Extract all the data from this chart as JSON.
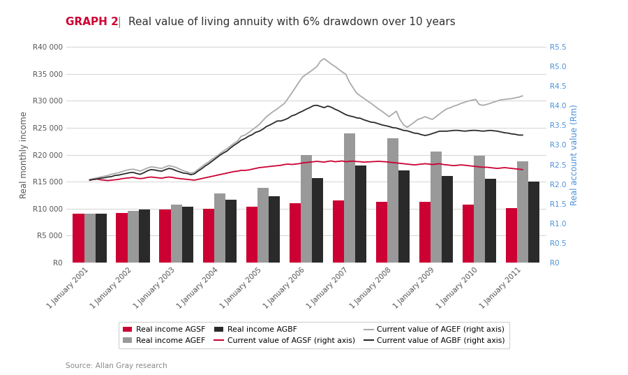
{
  "title_bold": "GRAPH 2",
  "title_sep": " | ",
  "title_rest": "Real value of living annuity with 6% drawdown over 10 years",
  "ylabel_left": "Real monthly income",
  "ylabel_right": "Real account value (Rm)",
  "xlabel_ticks": [
    "1 January 2001",
    "1 January 2002",
    "1 January 2003",
    "1 January 2004",
    "1 January 2005",
    "1 January 2006",
    "1 January 2007",
    "1 January 2008",
    "1 January 2009",
    "1 January 2010",
    "1 January 2011"
  ],
  "bar_x": [
    0,
    1,
    2,
    3,
    4,
    5,
    6,
    7,
    8,
    9,
    10
  ],
  "bar_agsf": [
    9000,
    9200,
    9800,
    10000,
    10300,
    11000,
    11500,
    11200,
    11300,
    10800,
    10100
  ],
  "bar_agef": [
    9100,
    9600,
    10700,
    12800,
    13900,
    20000,
    24000,
    23000,
    20600,
    19800,
    18800
  ],
  "bar_agbf": [
    9100,
    9800,
    10400,
    11600,
    12300,
    15700,
    18000,
    17100,
    16100,
    15500,
    15000
  ],
  "color_agsf_bar": "#cc0033",
  "color_agef_bar": "#999999",
  "color_agbf_bar": "#2a2a2a",
  "ylim_left": [
    0,
    40000
  ],
  "ylim_right": [
    0,
    5.5
  ],
  "left_ticks": [
    0,
    5000,
    10000,
    15000,
    20000,
    25000,
    30000,
    35000,
    40000
  ],
  "left_labels": [
    "R0",
    "R5 000",
    "R10 000",
    "R15 000",
    "R20 000",
    "R25 000",
    "R30 000",
    "R35 000",
    "R40 000"
  ],
  "right_ticks": [
    0,
    0.5,
    1.0,
    1.5,
    2.0,
    2.5,
    3.0,
    3.5,
    4.0,
    4.5,
    5.0,
    5.5
  ],
  "right_labels": [
    "R0",
    "R0.5",
    "R1.0",
    "R1.5",
    "R2.0",
    "R2.5",
    "R3.0",
    "R3.5",
    "R4.0",
    "R4.5",
    "R5.0",
    "R5.5"
  ],
  "source": "Source: Allan Gray research",
  "bg_color": "#f5f5f0",
  "line_agsf_y": [
    2.1,
    2.12,
    2.13,
    2.11,
    2.1,
    2.09,
    2.1,
    2.11,
    2.12,
    2.14,
    2.15,
    2.16,
    2.17,
    2.15,
    2.14,
    2.15,
    2.17,
    2.18,
    2.17,
    2.16,
    2.15,
    2.17,
    2.18,
    2.17,
    2.15,
    2.14,
    2.13,
    2.12,
    2.11,
    2.1,
    2.12,
    2.14,
    2.16,
    2.18,
    2.2,
    2.22,
    2.24,
    2.26,
    2.28,
    2.3,
    2.32,
    2.33,
    2.35,
    2.35,
    2.36,
    2.38,
    2.4,
    2.42,
    2.43,
    2.44,
    2.45,
    2.46,
    2.47,
    2.48,
    2.5,
    2.51,
    2.5,
    2.51,
    2.52,
    2.54,
    2.55,
    2.56,
    2.57,
    2.58,
    2.57,
    2.56,
    2.58,
    2.59,
    2.57,
    2.58,
    2.59,
    2.57,
    2.58,
    2.585,
    2.575,
    2.57,
    2.56,
    2.565,
    2.57,
    2.575,
    2.58,
    2.575,
    2.57,
    2.56,
    2.55,
    2.54,
    2.53,
    2.52,
    2.51,
    2.5,
    2.49,
    2.5,
    2.51,
    2.52,
    2.51,
    2.5,
    2.51,
    2.52,
    2.5,
    2.49,
    2.48,
    2.47,
    2.48,
    2.49,
    2.48,
    2.47,
    2.46,
    2.45,
    2.44,
    2.43,
    2.43,
    2.42,
    2.41,
    2.4,
    2.41,
    2.42,
    2.41,
    2.4,
    2.39,
    2.38,
    2.37
  ],
  "line_agef_y": [
    2.12,
    2.14,
    2.16,
    2.18,
    2.2,
    2.22,
    2.25,
    2.27,
    2.29,
    2.32,
    2.35,
    2.37,
    2.38,
    2.36,
    2.33,
    2.37,
    2.41,
    2.44,
    2.43,
    2.41,
    2.4,
    2.44,
    2.47,
    2.45,
    2.42,
    2.38,
    2.34,
    2.31,
    2.28,
    2.3,
    2.37,
    2.44,
    2.51,
    2.57,
    2.64,
    2.7,
    2.77,
    2.84,
    2.9,
    2.97,
    3.04,
    3.1,
    3.22,
    3.25,
    3.31,
    3.38,
    3.45,
    3.52,
    3.62,
    3.72,
    3.79,
    3.86,
    3.92,
    3.99,
    4.06,
    4.19,
    4.32,
    4.46,
    4.6,
    4.73,
    4.8,
    4.86,
    4.93,
    5.0,
    5.14,
    5.2,
    5.13,
    5.06,
    5.0,
    4.93,
    4.86,
    4.8,
    4.6,
    4.46,
    4.32,
    4.25,
    4.19,
    4.12,
    4.06,
    3.99,
    3.92,
    3.86,
    3.79,
    3.72,
    3.79,
    3.86,
    3.65,
    3.51,
    3.45,
    3.51,
    3.58,
    3.65,
    3.68,
    3.72,
    3.68,
    3.65,
    3.72,
    3.79,
    3.86,
    3.92,
    3.95,
    3.99,
    4.02,
    4.06,
    4.09,
    4.12,
    4.14,
    4.16,
    4.03,
    4.01,
    4.03,
    4.06,
    4.09,
    4.12,
    4.15,
    4.16,
    4.17,
    4.18,
    4.2,
    4.22,
    4.25
  ],
  "line_agbf_y": [
    2.1,
    2.12,
    2.13,
    2.15,
    2.16,
    2.18,
    2.19,
    2.22,
    2.23,
    2.25,
    2.27,
    2.29,
    2.3,
    2.27,
    2.25,
    2.29,
    2.34,
    2.37,
    2.36,
    2.34,
    2.33,
    2.37,
    2.4,
    2.38,
    2.34,
    2.31,
    2.28,
    2.27,
    2.24,
    2.26,
    2.33,
    2.39,
    2.46,
    2.52,
    2.59,
    2.66,
    2.73,
    2.79,
    2.84,
    2.92,
    2.99,
    3.05,
    3.12,
    3.16,
    3.22,
    3.26,
    3.32,
    3.35,
    3.4,
    3.47,
    3.51,
    3.56,
    3.61,
    3.61,
    3.64,
    3.68,
    3.74,
    3.77,
    3.82,
    3.86,
    3.91,
    3.95,
    4.0,
    4.01,
    3.98,
    3.95,
    3.99,
    3.96,
    3.91,
    3.87,
    3.82,
    3.77,
    3.74,
    3.72,
    3.69,
    3.68,
    3.64,
    3.61,
    3.58,
    3.57,
    3.54,
    3.51,
    3.49,
    3.47,
    3.44,
    3.43,
    3.4,
    3.37,
    3.36,
    3.33,
    3.3,
    3.29,
    3.26,
    3.24,
    3.26,
    3.29,
    3.32,
    3.35,
    3.35,
    3.35,
    3.36,
    3.37,
    3.37,
    3.36,
    3.35,
    3.36,
    3.37,
    3.37,
    3.36,
    3.35,
    3.36,
    3.37,
    3.36,
    3.35,
    3.33,
    3.31,
    3.3,
    3.28,
    3.27,
    3.25,
    3.25
  ]
}
